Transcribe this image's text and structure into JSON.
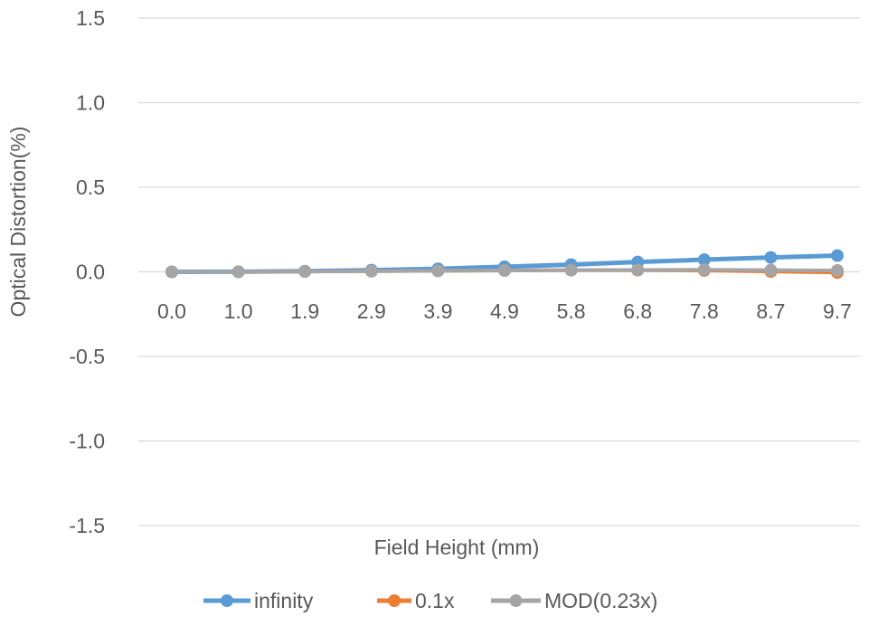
{
  "chart_data": {
    "type": "line",
    "title": "",
    "xlabel": "Field Height (mm)",
    "ylabel": "Optical Distortion(%)",
    "categories": [
      "0.0",
      "1.0",
      "1.9",
      "2.9",
      "3.9",
      "4.9",
      "5.8",
      "6.8",
      "7.8",
      "8.7",
      "9.7"
    ],
    "ylim": [
      -1.5,
      1.5
    ],
    "yticks": [
      "1.5",
      "1.0",
      "0.5",
      "0.0",
      "-0.5",
      "-1.0",
      "-1.5"
    ],
    "ytick_values": [
      1.5,
      1.0,
      0.5,
      0.0,
      -0.5,
      -1.0,
      -1.5
    ],
    "grid": true,
    "legend_position": "bottom",
    "series": [
      {
        "name": "infinity",
        "color": "#5B9BD5",
        "values": [
          0.0,
          0.001,
          0.004,
          0.01,
          0.018,
          0.03,
          0.043,
          0.058,
          0.072,
          0.085,
          0.096
        ]
      },
      {
        "name": "0.1x",
        "color": "#ED7D31",
        "values": [
          0.0,
          0.0,
          0.002,
          0.004,
          0.006,
          0.008,
          0.01,
          0.01,
          0.008,
          0.002,
          -0.004
        ]
      },
      {
        "name": "MOD(0.23x)",
        "color": "#A5A5A5",
        "values": [
          0.0,
          0.0,
          0.002,
          0.004,
          0.006,
          0.008,
          0.01,
          0.011,
          0.012,
          0.01,
          0.008
        ]
      }
    ]
  }
}
